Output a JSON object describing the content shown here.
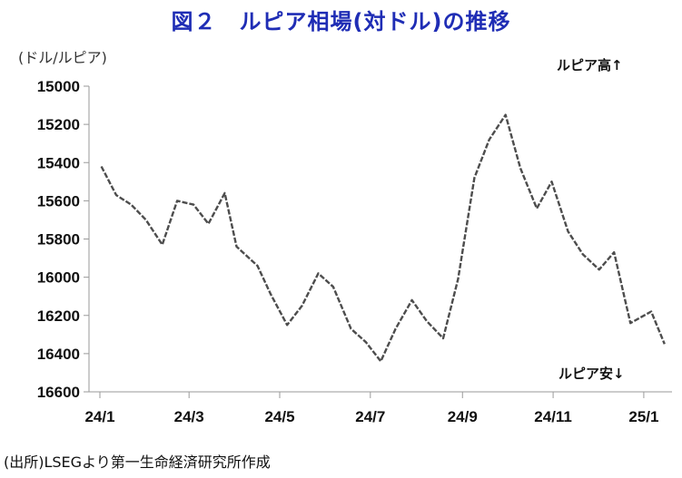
{
  "title": "図２　ルピア相場(対ドル)の推移",
  "unit_label": "(ドル/ルピア)",
  "source": "(出所)LSEGより第一生命経済研究所作成",
  "annotations": {
    "up": "ルピア高↑",
    "down": "ルピア安↓"
  },
  "colors": {
    "title": "#1f2db5",
    "line": "#4d4d4d",
    "axis": "#9a9a9a"
  },
  "chart_data": {
    "type": "line",
    "title": "図２　ルピア相場(対ドル)の推移",
    "ylabel": "(ドル/ルピア)",
    "y_inverted": true,
    "ylim": [
      15000,
      16600
    ],
    "y_ticks": [
      15000,
      15200,
      15400,
      15600,
      15800,
      16000,
      16200,
      16400,
      16600
    ],
    "x_ticks": [
      "24/1",
      "24/3",
      "24/5",
      "24/7",
      "24/9",
      "24/11",
      "25/1"
    ],
    "grid": false,
    "series": [
      {
        "x": [
          "2024-01-02",
          "2024-01-12",
          "2024-01-22",
          "2024-02-01",
          "2024-02-12",
          "2024-02-22",
          "2024-03-04",
          "2024-03-14",
          "2024-03-25",
          "2024-04-02",
          "2024-04-16",
          "2024-04-25",
          "2024-05-06",
          "2024-05-16",
          "2024-05-27",
          "2024-06-06",
          "2024-06-18",
          "2024-06-28",
          "2024-07-08",
          "2024-07-18",
          "2024-07-29",
          "2024-08-08",
          "2024-08-19",
          "2024-08-29",
          "2024-09-09",
          "2024-09-19",
          "2024-09-30",
          "2024-10-10",
          "2024-10-21",
          "2024-10-31",
          "2024-11-11",
          "2024-11-21",
          "2024-12-02",
          "2024-12-12",
          "2024-12-23",
          "2025-01-06",
          "2025-01-15"
        ],
        "values": [
          15420,
          15570,
          15620,
          15700,
          15830,
          15600,
          15620,
          15720,
          15560,
          15840,
          15940,
          16090,
          16250,
          16150,
          15980,
          16050,
          16270,
          16340,
          16440,
          16270,
          16120,
          16230,
          16320,
          16010,
          15480,
          15280,
          15150,
          15430,
          15640,
          15500,
          15760,
          15880,
          15960,
          15870,
          16240,
          16180,
          16350
        ]
      }
    ]
  }
}
